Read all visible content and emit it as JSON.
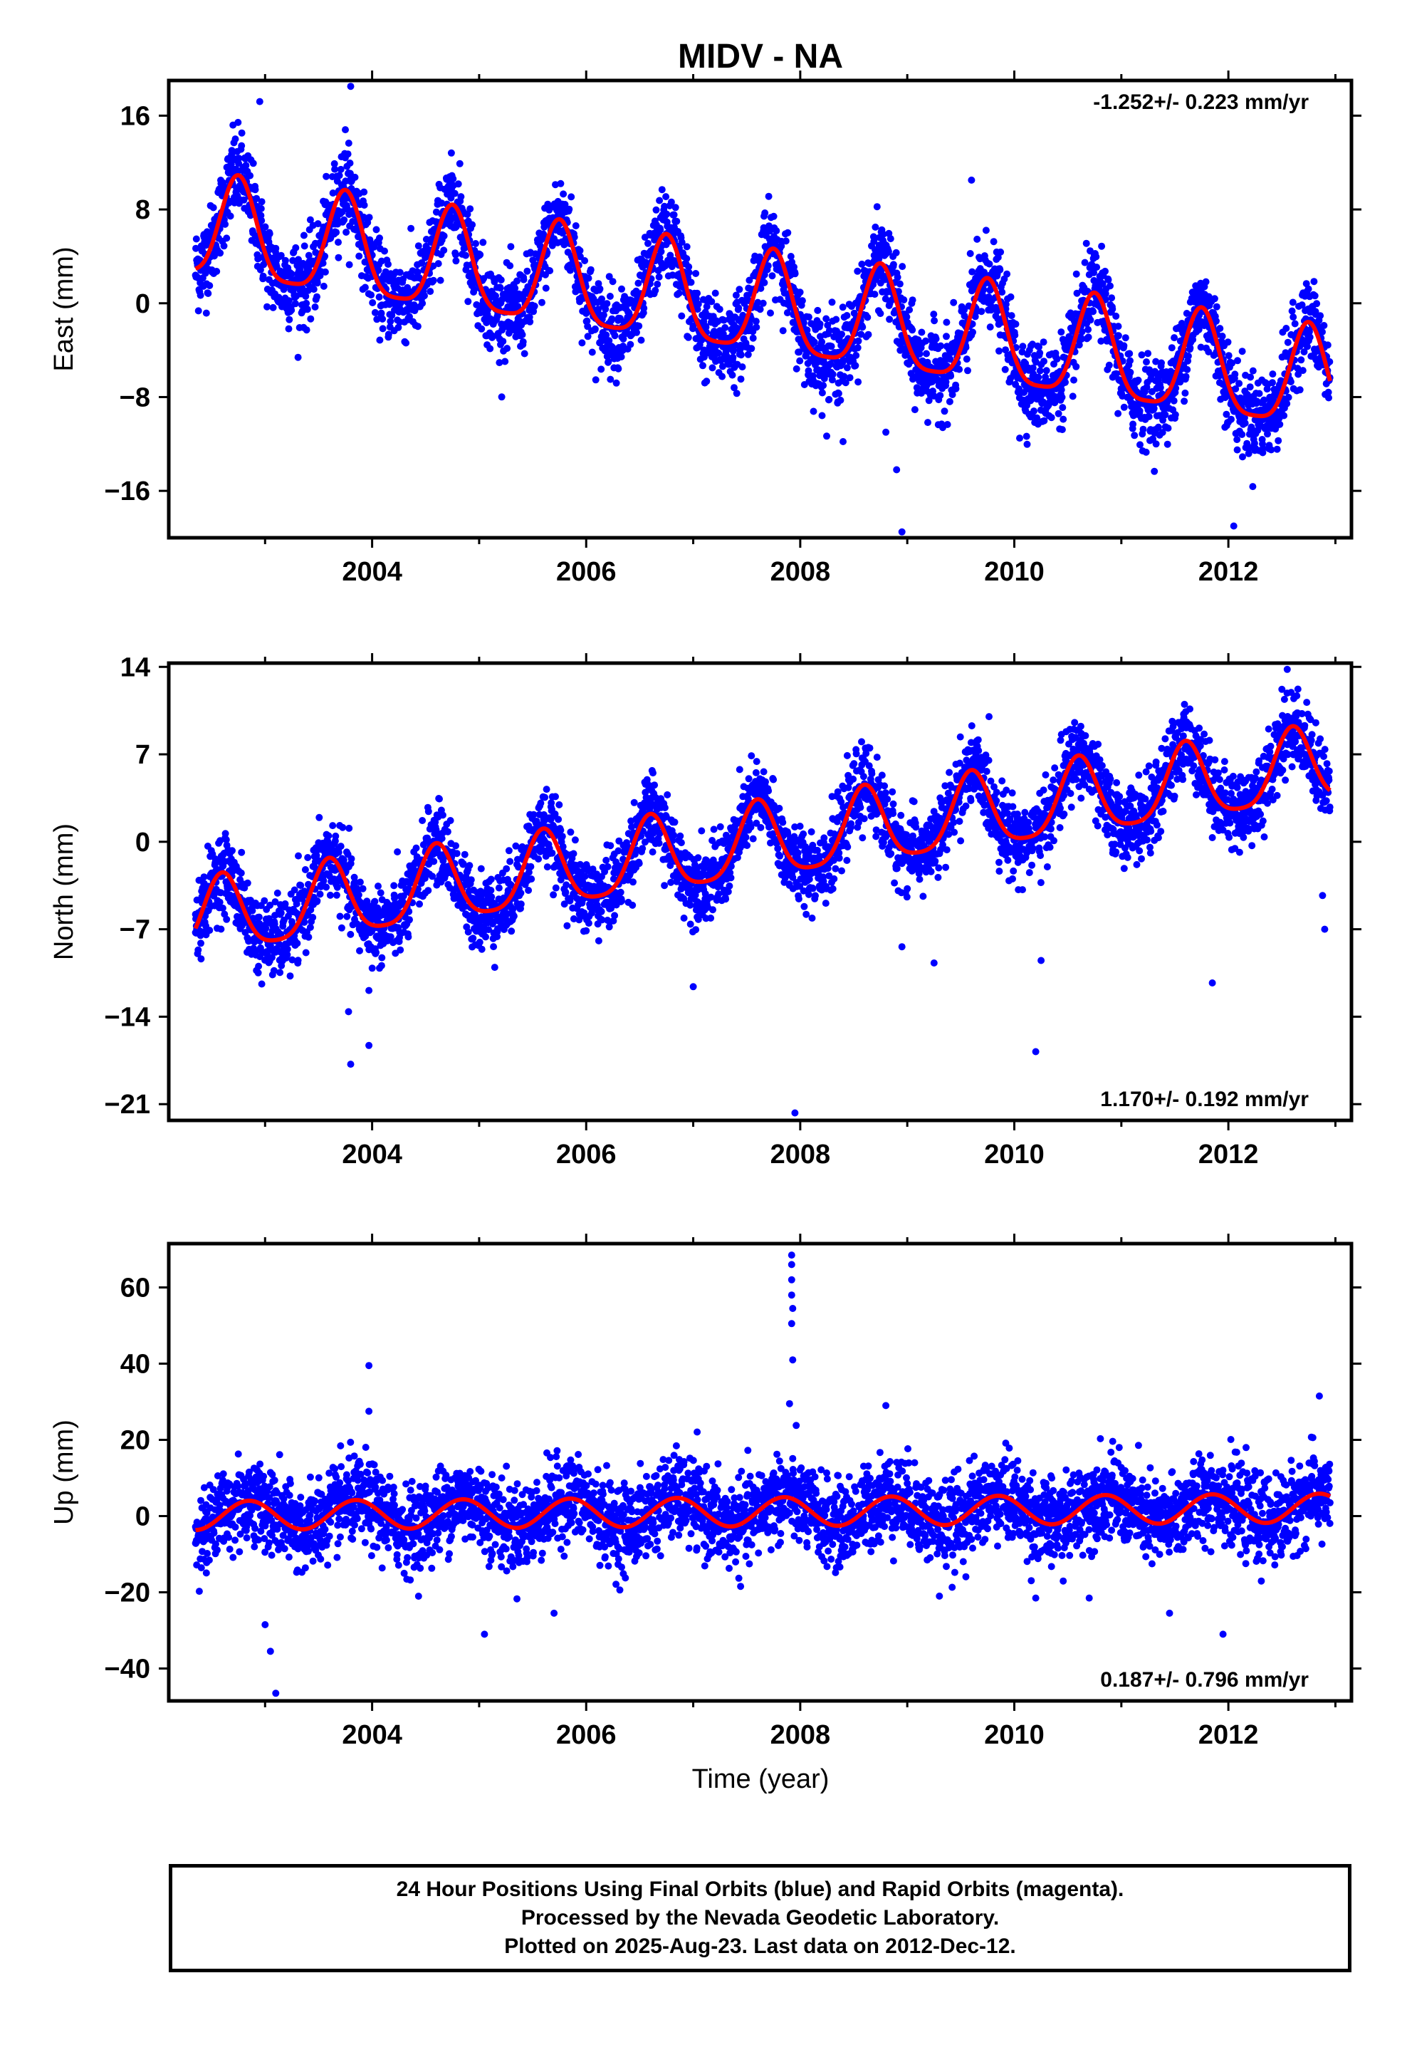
{
  "title": "MIDV - NA",
  "xlabel": "Time (year)",
  "colors": {
    "points": "#0000ff",
    "fit": "#ff0000",
    "axes": "#000000"
  },
  "footer": {
    "line1": "24 Hour Positions Using Final Orbits (blue) and Rapid Orbits (magenta).",
    "line2": "Processed by the Nevada Geodetic Laboratory.",
    "line3": "Plotted on 2025-Aug-23. Last data on 2012-Dec-12."
  },
  "chart_data": [
    {
      "type": "scatter",
      "name": "east",
      "ylabel": "East (mm)",
      "rate_text": "-1.252+/- 0.223 mm/yr",
      "rate_position": "top-right",
      "xlim": [
        2002.1,
        2013.15
      ],
      "ylim": [
        -20,
        19
      ],
      "yticks": [
        16,
        8,
        0,
        -8,
        -16
      ],
      "ytick_labels": [
        "16",
        "8",
        "0",
        "−8",
        "−16"
      ],
      "xticks": [
        2004,
        2006,
        2008,
        2010,
        2012
      ],
      "xtick_labels": [
        "2004",
        "2006",
        "2008",
        "2010",
        "2012"
      ],
      "model": {
        "start": 2002.35,
        "end": 2012.95,
        "rate": -1.252,
        "offset_at_2007": 0.3,
        "annual_amp": 4.3,
        "annual_peak": 2002.75,
        "semiannual_amp": 1.0
      },
      "scatter_sd": 1.8,
      "data_points": [
        [
          2002.4,
          3.0
        ],
        [
          2002.8,
          9.5
        ],
        [
          2003.35,
          2.0
        ],
        [
          2003.75,
          8.3
        ],
        [
          2004.35,
          1.0
        ],
        [
          2004.7,
          6.8
        ],
        [
          2005.35,
          -0.5
        ],
        [
          2005.7,
          5.5
        ],
        [
          2006.35,
          -2.0
        ],
        [
          2006.7,
          4.4
        ],
        [
          2007.35,
          -3.2
        ],
        [
          2007.7,
          3.2
        ],
        [
          2008.35,
          -4.2
        ],
        [
          2008.7,
          2.0
        ],
        [
          2009.35,
          -5.2
        ],
        [
          2009.7,
          0.8
        ],
        [
          2010.35,
          -6.8
        ],
        [
          2010.7,
          -0.8
        ],
        [
          2011.35,
          -7.9
        ],
        [
          2011.7,
          -2.0
        ],
        [
          2012.35,
          -9.2
        ],
        [
          2012.75,
          -3.2
        ],
        [
          2012.9,
          -5.0
        ]
      ],
      "outliers": [
        [
          2002.95,
          17.2
        ],
        [
          2003.8,
          18.5
        ],
        [
          2003.75,
          14.8
        ],
        [
          2009.6,
          10.5
        ],
        [
          2008.95,
          -19.5
        ],
        [
          2012.05,
          -19.0
        ],
        [
          2008.9,
          -14.2
        ],
        [
          2008.4,
          -11.8
        ],
        [
          2010.05,
          -11.5
        ],
        [
          2008.8,
          -11.0
        ],
        [
          2012.4,
          -12.5
        ],
        [
          2002.7,
          15.2
        ],
        [
          2011.5,
          -9.8
        ]
      ]
    },
    {
      "type": "scatter",
      "name": "north",
      "ylabel": "North (mm)",
      "rate_text": "1.170+/- 0.192 mm/yr",
      "rate_position": "bottom-right",
      "xlim": [
        2002.1,
        2013.15
      ],
      "ylim": [
        -22.3,
        14.3
      ],
      "yticks": [
        14,
        7,
        0,
        -7,
        -14,
        -21
      ],
      "ytick_labels": [
        "14",
        "7",
        "0",
        "−7",
        "−14",
        "−21"
      ],
      "xticks": [
        2004,
        2006,
        2008,
        2010,
        2012
      ],
      "xtick_labels": [
        "2004",
        "2006",
        "2008",
        "2010",
        "2012"
      ],
      "model": {
        "start": 2002.35,
        "end": 2012.95,
        "rate": 1.17,
        "offset_at_2007": -0.9,
        "annual_amp": 3.0,
        "annual_peak": 2002.6,
        "semiannual_amp": 0.6
      },
      "scatter_sd": 1.5,
      "data_points": [
        [
          2002.35,
          -5.8
        ],
        [
          2002.6,
          -2.7
        ],
        [
          2002.95,
          -7.3
        ],
        [
          2003.6,
          -1.5
        ],
        [
          2003.95,
          -6.2
        ],
        [
          2004.6,
          -0.3
        ],
        [
          2004.95,
          -5.0
        ],
        [
          2005.6,
          0.8
        ],
        [
          2005.95,
          -4.0
        ],
        [
          2006.6,
          2.0
        ],
        [
          2006.95,
          -2.8
        ],
        [
          2007.6,
          3.0
        ],
        [
          2007.95,
          -1.6
        ],
        [
          2008.6,
          4.2
        ],
        [
          2008.95,
          -0.4
        ],
        [
          2009.6,
          5.4
        ],
        [
          2009.95,
          0.8
        ],
        [
          2010.6,
          6.6
        ],
        [
          2010.95,
          2.0
        ],
        [
          2011.6,
          7.8
        ],
        [
          2011.95,
          3.2
        ],
        [
          2012.6,
          9.0
        ],
        [
          2012.9,
          4.5
        ]
      ],
      "outliers": [
        [
          2003.8,
          -17.8
        ],
        [
          2003.97,
          -16.3
        ],
        [
          2003.78,
          -13.6
        ],
        [
          2003.97,
          -11.9
        ],
        [
          2007.95,
          -21.7
        ],
        [
          2010.2,
          -16.8
        ],
        [
          2011.85,
          -11.3
        ],
        [
          2007.0,
          -11.6
        ],
        [
          2012.9,
          -7.0
        ],
        [
          2012.88,
          -4.3
        ],
        [
          2010.25,
          -9.5
        ],
        [
          2009.25,
          -9.7
        ],
        [
          2008.95,
          -8.4
        ],
        [
          2012.5,
          12.2
        ],
        [
          2012.55,
          13.8
        ]
      ]
    },
    {
      "type": "scatter",
      "name": "up",
      "ylabel": "Up (mm)",
      "rate_text": "0.187+/- 0.796 mm/yr",
      "rate_position": "bottom-right",
      "xlim": [
        2002.1,
        2013.15
      ],
      "ylim": [
        -48.5,
        71.5
      ],
      "yticks": [
        60,
        40,
        20,
        0,
        -20,
        -40
      ],
      "ytick_labels": [
        "60",
        "40",
        "20",
        "0",
        "−20",
        "−40"
      ],
      "xticks": [
        2004,
        2006,
        2008,
        2010,
        2012
      ],
      "xtick_labels": [
        "2004",
        "2006",
        "2008",
        "2010",
        "2012"
      ],
      "model": {
        "start": 2002.35,
        "end": 2012.95,
        "rate": 0.187,
        "offset_at_2007": 1.0,
        "annual_amp": 3.8,
        "annual_peak": 2002.85,
        "semiannual_amp": 0.0
      },
      "scatter_sd": 5.5,
      "data_points": [
        [
          2002.35,
          -2.8
        ],
        [
          2002.85,
          4.5
        ],
        [
          2003.35,
          -3.2
        ],
        [
          2003.85,
          4.5
        ],
        [
          2004.35,
          -3.0
        ],
        [
          2004.85,
          4.5
        ],
        [
          2005.35,
          -3.0
        ],
        [
          2005.85,
          4.8
        ],
        [
          2006.35,
          -2.6
        ],
        [
          2006.85,
          5.0
        ],
        [
          2007.35,
          -2.4
        ],
        [
          2007.85,
          5.2
        ],
        [
          2008.35,
          -2.2
        ],
        [
          2008.85,
          5.4
        ],
        [
          2009.35,
          -2.0
        ],
        [
          2009.85,
          5.6
        ],
        [
          2010.35,
          -1.8
        ],
        [
          2010.85,
          5.8
        ],
        [
          2011.35,
          -1.6
        ],
        [
          2011.85,
          6.0
        ],
        [
          2012.35,
          -1.5
        ],
        [
          2012.85,
          6.2
        ],
        [
          2012.95,
          3.5
        ]
      ],
      "outliers": [
        [
          2007.92,
          68.5
        ],
        [
          2007.92,
          66.0
        ],
        [
          2007.92,
          62.0
        ],
        [
          2007.92,
          58.0
        ],
        [
          2007.93,
          54.5
        ],
        [
          2007.92,
          50.5
        ],
        [
          2007.93,
          41.0
        ],
        [
          2003.97,
          39.5
        ],
        [
          2003.97,
          27.5
        ],
        [
          2007.9,
          29.5
        ],
        [
          2008.8,
          29.0
        ],
        [
          2012.85,
          31.5
        ],
        [
          2003.1,
          -46.5
        ],
        [
          2003.05,
          -35.5
        ],
        [
          2005.05,
          -31.0
        ],
        [
          2011.95,
          -31.0
        ],
        [
          2003.0,
          -28.5
        ],
        [
          2010.2,
          -21.5
        ],
        [
          2010.7,
          -21.5
        ],
        [
          2011.45,
          -25.5
        ],
        [
          2009.3,
          -21.0
        ],
        [
          2005.7,
          -25.5
        ]
      ]
    }
  ]
}
